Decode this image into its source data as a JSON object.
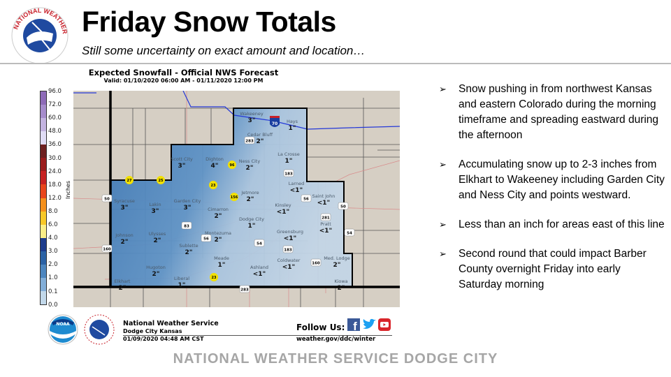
{
  "header": {
    "title": "Friday Snow Totals",
    "subtitle": "Still some uncertainty on exact amount and location…",
    "logo_text": "NATIONAL WEATHER SERVICE"
  },
  "map": {
    "title": "Expected Snowfall - Official NWS Forecast",
    "valid": "Valid: 01/10/2020 06:00 AM - 01/11/2020 12:00 PM",
    "colorbar": {
      "unit": "Inches",
      "labels": [
        "96.0",
        "72.0",
        "60.0",
        "48.0",
        "36.0",
        "30.0",
        "24.0",
        "18.0",
        "12.0",
        "8.0",
        "6.0",
        "4.0",
        "3.0",
        "2.0",
        "1.0",
        "0.1",
        "0.0"
      ],
      "colors": [
        "#8e6bb8",
        "#a68ccc",
        "#c3b3e0",
        "#e0dcf5",
        "#4a2222",
        "#6e2020",
        "#9a1c1c",
        "#c62222",
        "#e8461c",
        "#f5901c",
        "#f8c828",
        "#fbee88",
        "#1d3c8c",
        "#2b62a5",
        "#4d86bf",
        "#82aed8",
        "#c2d8ea",
        "#f2f2f2"
      ]
    },
    "places": [
      {
        "name": "Wakeeney",
        "amount": "3\""
      },
      {
        "name": "Hays",
        "amount": "1\""
      },
      {
        "name": "Cedar Bluff",
        "amount": "2\""
      },
      {
        "name": "Scott City",
        "amount": "3\""
      },
      {
        "name": "Dighton",
        "amount": "4\""
      },
      {
        "name": "Ness City",
        "amount": "2\""
      },
      {
        "name": "La Crosse",
        "amount": "1\""
      },
      {
        "name": "Larned",
        "amount": "<1\""
      },
      {
        "name": "Jetmore",
        "amount": "2\""
      },
      {
        "name": "Saint John",
        "amount": "<1\""
      },
      {
        "name": "Kinsley",
        "amount": "<1\""
      },
      {
        "name": "Syracuse",
        "amount": "3\""
      },
      {
        "name": "Lakin",
        "amount": "3\""
      },
      {
        "name": "Garden City",
        "amount": "3\""
      },
      {
        "name": "Cimarron",
        "amount": "2\""
      },
      {
        "name": "Dodge City",
        "amount": "1\""
      },
      {
        "name": "Pratt",
        "amount": "<1\""
      },
      {
        "name": "Johnson",
        "amount": "2\""
      },
      {
        "name": "Ulysses",
        "amount": "2\""
      },
      {
        "name": "Montezuma",
        "amount": "2\""
      },
      {
        "name": "Greensburg",
        "amount": "<1\""
      },
      {
        "name": "Sublette",
        "amount": "2\""
      },
      {
        "name": "Meade",
        "amount": "1\""
      },
      {
        "name": "Coldwater",
        "amount": "<1\""
      },
      {
        "name": "Med. Lodge",
        "amount": "2\""
      },
      {
        "name": "Ashland",
        "amount": "<1\""
      },
      {
        "name": "Hugoton",
        "amount": "2\""
      },
      {
        "name": "Elkhart",
        "amount": "2\""
      },
      {
        "name": "Liberal",
        "amount": "1\""
      },
      {
        "name": "Kiowa",
        "amount": "2\""
      }
    ],
    "us_highways": [
      "283",
      "183",
      "50",
      "56",
      "50",
      "281",
      "83",
      "54",
      "160",
      "56",
      "54",
      "183",
      "160",
      "283"
    ],
    "state_highways": [
      "96",
      "27",
      "25",
      "23",
      "156",
      "23"
    ],
    "interstate": "70"
  },
  "bullets": [
    "Snow pushing in from northwest Kansas and eastern Colorado during the morning timeframe and spreading eastward during the afternoon",
    "Accumulating snow up to 2-3 inches from Elkhart to Wakeeney including Garden City and Ness City and points westward.",
    "Less than an inch for areas east of this line",
    "Second round that could impact Barber County overnight Friday into early Saturday morning"
  ],
  "footer": {
    "noaa_logo": "NOAA",
    "nws_name": "National Weather Service",
    "office": "Dodge City Kansas",
    "issued": "01/09/2020 04:48 AM CST",
    "follow": "Follow Us:",
    "link": "weather.gov/ddc/winter",
    "social": [
      "facebook",
      "twitter",
      "youtube"
    ]
  },
  "bottom_banner": "NATIONAL WEATHER SERVICE DODGE CITY"
}
